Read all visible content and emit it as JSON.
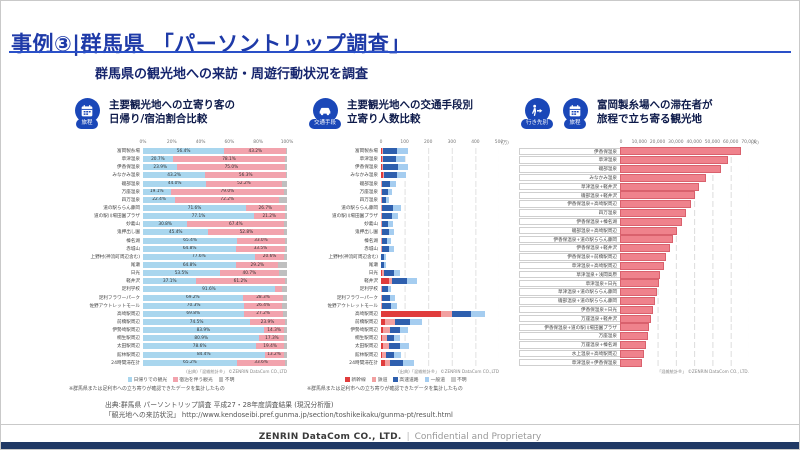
{
  "slide": {
    "title": "事例③|群馬県 「パーソントリップ調査」",
    "subtitle": "群馬県の観光地への来訪・周遊行動状況を調査",
    "source_line1": "出典:群馬県 パーソントリップ調査 平成27・28年度調査結果 (現況分析版)",
    "source_line2": "「観光地への来訪状況」 http://www.kendoseibi.pref.gunma.jp/section/toshikeikaku/gunma-pt/result.html",
    "footer_company": "ZENRIN DataCom CO., LTD.",
    "footer_separator": "|",
    "footer_note": "Confidential and Proprietary"
  },
  "colors": {
    "title_blue": "#1e3aa8",
    "badge_blue": "#1a47b8",
    "footer_bar_navy": "#1f3864",
    "daytrip_blue": "#a9d6ee",
    "stay_pink": "#f2a3ad",
    "unknown_gray": "#bfbfbf",
    "shinkansen_red": "#e03c3c",
    "rail_pink": "#f2a0a0",
    "highway_blue": "#2e5fae",
    "road_lightblue": "#a5cdf0",
    "tomioka_bar_salmon": "#ef828c"
  },
  "chart_data": [
    {
      "type": "bar",
      "orientation": "horizontal-stacked-100pct",
      "badges": [
        {
          "icon": "calendar-icon",
          "label": "旅程"
        }
      ],
      "title": "主要観光地への立寄り客の\n日帰り/宿泊割合比較",
      "axis": {
        "ticks": [
          "0%",
          "20%",
          "40%",
          "60%",
          "80%",
          "100%"
        ]
      },
      "xmax": 100,
      "show_labels": true,
      "label_min": 10,
      "fill_remainder": true,
      "remainder_color": "#bfbfbf",
      "series_colors": [
        "#a9d6ee",
        "#f2a3ad"
      ],
      "categories": [
        "富岡製糸場",
        "草津温泉",
        "伊香保温泉",
        "みなかみ温泉",
        "磯部温泉",
        "万座温泉",
        "四万温泉",
        "道の駅ららん藤岡",
        "道の駅川場田園プラザ",
        "妙義山",
        "鬼押出し園",
        "榛名湖",
        "赤城山",
        "上野村(神流町周辺含む)",
        "尾瀬",
        "日光",
        "軽井沢",
        "足利学校",
        "足利フラワーパーク",
        "佐野アウトレットモール",
        "高崎駅周辺",
        "前橋駅周辺",
        "伊勢崎駅周辺",
        "桐生駅周辺",
        "太田駅周辺",
        "館林駅周辺",
        "24時間滞在計"
      ],
      "series": [
        {
          "name": "日帰りでの観光",
          "values": [
            56.4,
            20.7,
            23.9,
            43.2,
            44.0,
            19.1,
            22.4,
            71.6,
            77.1,
            30.8,
            45.4,
            65.4,
            64.8,
            77.6,
            64.8,
            53.5,
            37.1,
            91.6,
            69.2,
            70.3,
            69.8,
            74.5,
            83.9,
            80.9,
            78.6,
            84.4,
            65.2
          ]
        },
        {
          "name": "宿泊を伴う観光",
          "values": [
            43.2,
            78.1,
            75.0,
            56.3,
            52.2,
            79.0,
            72.2,
            26.7,
            21.2,
            67.4,
            52.8,
            33.0,
            33.5,
            20.6,
            29.2,
            40.7,
            61.2,
            4.9,
            28.3,
            26.4,
            27.2,
            23.9,
            14.3,
            17.3,
            19.4,
            13.2,
            33.6
          ]
        }
      ],
      "legend": [
        {
          "label": "日帰りでの観光",
          "color": "#a9d6ee"
        },
        {
          "label": "宿泊を伴う観光",
          "color": "#f2a3ad"
        },
        {
          "label": "不明",
          "color": "#bfbfbf"
        }
      ],
      "source": "(出典)「混雑統計®」 ©ZENRIN DataCom CO.,LTD",
      "note": "※群馬県または足利市への立ち寄りが確認できたデータを集計したもの"
    },
    {
      "type": "bar",
      "orientation": "horizontal-stacked",
      "badges": [
        {
          "icon": "car-icon",
          "label": "交通手段"
        }
      ],
      "title": "主要観光地への交通手段別\n立寄り人数比較",
      "axis": {
        "ticks": [
          "0",
          "100",
          "200",
          "300",
          "400",
          "500"
        ],
        "unit": "(万)"
      },
      "xmax": 500,
      "show_labels": false,
      "series_colors": [
        "#e03c3c",
        "#f2a0a0",
        "#2e5fae",
        "#a5cdf0"
      ],
      "categories": [
        "富岡製糸場",
        "草津温泉",
        "伊香保温泉",
        "みなかみ温泉",
        "磯部温泉",
        "万座温泉",
        "四万温泉",
        "道の駅ららん藤岡",
        "道の駅川場田園プラザ",
        "妙義山",
        "鬼押出し園",
        "榛名湖",
        "赤城山",
        "上野村(神流町周辺含む)",
        "尾瀬",
        "日光",
        "軽井沢",
        "足利学校",
        "足利フラワーパーク",
        "佐野アウトレットモール",
        "高崎駅周辺",
        "前橋駅周辺",
        "伊勢崎駅周辺",
        "桐生駅周辺",
        "太田駅周辺",
        "館林駅周辺",
        "24時間滞在計"
      ],
      "series": [
        {
          "name": "新幹線",
          "values": [
            3,
            3,
            3,
            8,
            2,
            1,
            1,
            1,
            1,
            1,
            1,
            1,
            1,
            0,
            0,
            4,
            35,
            1,
            1,
            1,
            255,
            18,
            8,
            4,
            8,
            4,
            15
          ]
        },
        {
          "name": "鉄道",
          "values": [
            6,
            4,
            5,
            6,
            4,
            2,
            2,
            2,
            2,
            2,
            2,
            2,
            2,
            1,
            1,
            8,
            12,
            5,
            5,
            3,
            45,
            42,
            30,
            20,
            26,
            16,
            25
          ]
        },
        {
          "name": "高速道路",
          "values": [
            60,
            55,
            62,
            55,
            32,
            26,
            19,
            48,
            42,
            27,
            30,
            24,
            32,
            12,
            13,
            42,
            62,
            22,
            32,
            38,
            80,
            62,
            42,
            32,
            46,
            36,
            55
          ]
        },
        {
          "name": "一般道",
          "values": [
            45,
            38,
            45,
            38,
            25,
            17,
            13,
            32,
            28,
            19,
            20,
            16,
            22,
            9,
            9,
            28,
            42,
            16,
            22,
            25,
            60,
            52,
            36,
            26,
            40,
            30,
            45
          ]
        }
      ],
      "legend": [
        {
          "label": "新幹線",
          "color": "#e03c3c"
        },
        {
          "label": "鉄道",
          "color": "#f2a0a0"
        },
        {
          "label": "高速道路",
          "color": "#2e5fae"
        },
        {
          "label": "一般道",
          "color": "#a5cdf0"
        },
        {
          "label": "不明",
          "color": "#c9c9c9"
        }
      ],
      "source": "(出典)「混雑統計®」 ©ZENRIN DataCom CO.,LTD",
      "note": "※群馬県または足利市への立ち寄りが確認できたデータを集計したもの"
    },
    {
      "type": "bar",
      "orientation": "horizontal",
      "badges": [
        {
          "icon": "walk-arrow-icon",
          "label": "行き先別"
        },
        {
          "icon": "calendar-icon",
          "label": "旅程"
        }
      ],
      "title": "富岡製糸場への滞在者が\n旅程で立ち寄る観光地",
      "axis": {
        "ticks": [
          "0",
          "10,000",
          "20,000",
          "30,000",
          "40,000",
          "50,000",
          "60,000",
          "70,000"
        ],
        "unit": "(人)"
      },
      "xmax": 70000,
      "bar_color": "#ef828c",
      "categories": [
        "伊香保温泉",
        "草津温泉",
        "磯部温泉",
        "みなかみ温泉",
        "草津温泉+軽井沢",
        "磯部温泉+軽井沢",
        "伊香保温泉+高崎駅周辺",
        "四万温泉",
        "伊香保温泉+榛名湖",
        "磯部温泉+高崎駅周辺",
        "伊香保温泉+道の駅ららん藤岡",
        "伊香保温泉+軽井沢",
        "伊香保温泉+前橋駅周辺",
        "草津温泉+高崎駅周辺",
        "草津温泉+浅間高原",
        "草津温泉+日光",
        "草津温泉+道の駅ららん藤岡",
        "磯部温泉+道の駅ららん藤岡",
        "伊香保温泉+日光",
        "万座温泉+軽井沢",
        "伊香保温泉+道の駅川場田園プラザ",
        "万座温泉",
        "万座温泉+榛名湖",
        "水上温泉+高崎駅周辺",
        "草津温泉+伊香保温泉"
      ],
      "values": [
        65000,
        58000,
        54000,
        46000,
        42000,
        40000,
        38000,
        35000,
        33000,
        30000,
        28000,
        26000,
        24000,
        23000,
        21000,
        20000,
        19000,
        18000,
        17000,
        16000,
        15000,
        14000,
        13000,
        12000,
        11000
      ],
      "source": "「混雑統計®」 ©ZENRIN DataCom CO., LTD."
    }
  ]
}
